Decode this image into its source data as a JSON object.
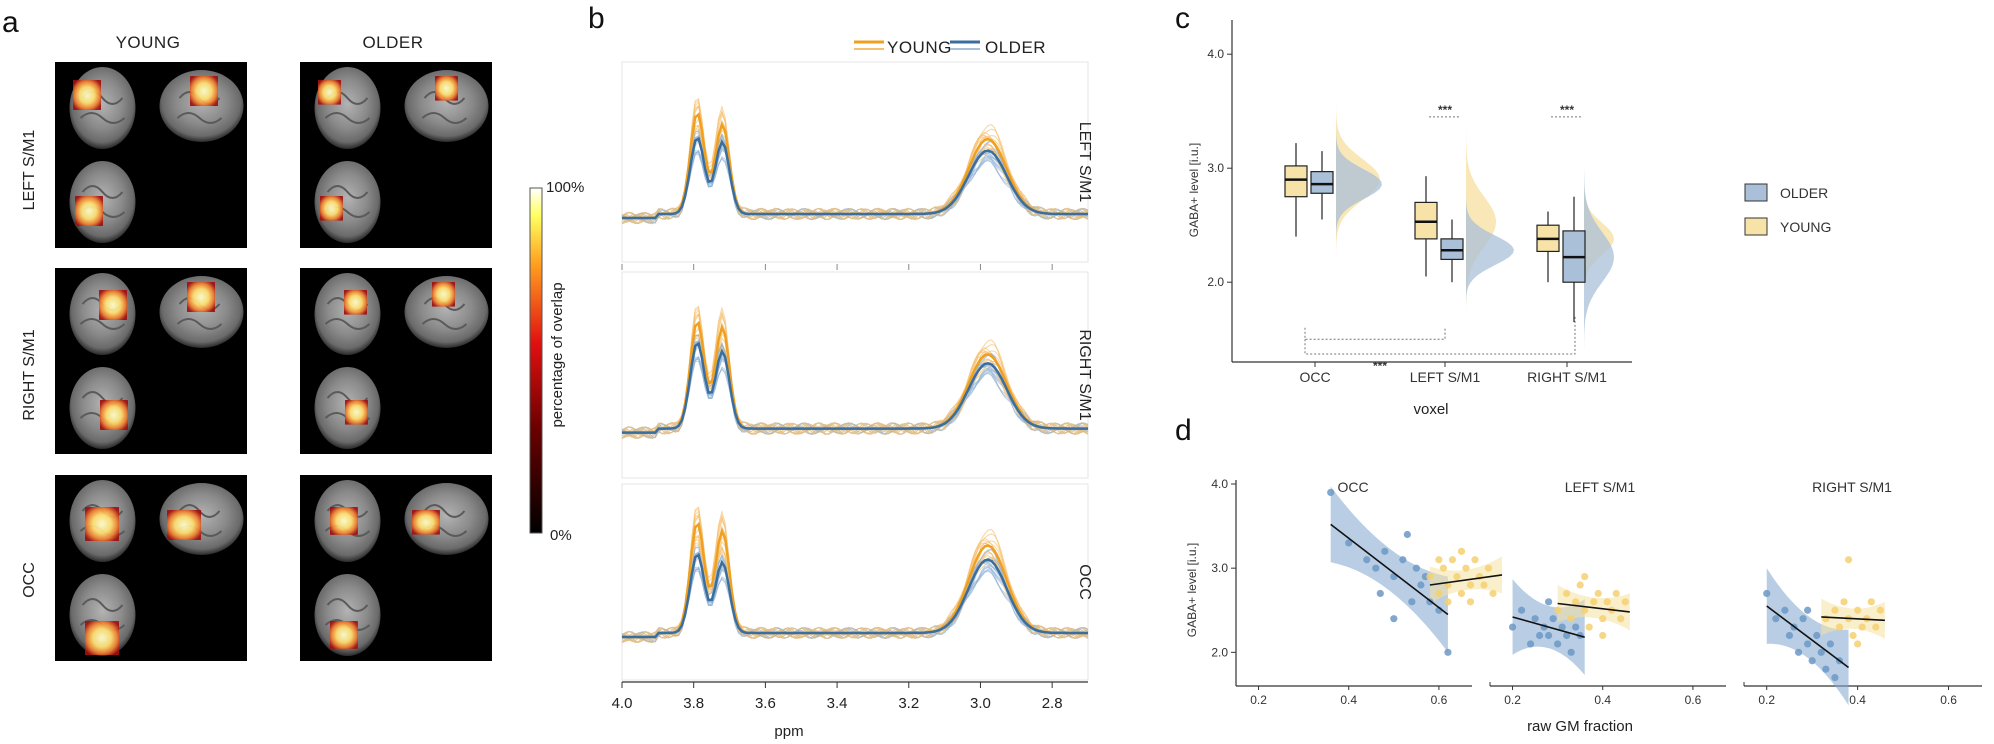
{
  "panels": {
    "a": {
      "label": "a",
      "col_headers": [
        "YOUNG",
        "OLDER"
      ],
      "row_labels": [
        "LEFT S/M1",
        "RIGHT S/M1",
        "OCC"
      ],
      "colorbar": {
        "max_label": "100%",
        "min_label": "0%",
        "title": "percentage of overlap"
      }
    },
    "b": {
      "label": "b"
    },
    "c": {
      "label": "c"
    },
    "d": {
      "label": "d"
    }
  },
  "chart_data": [
    {
      "id": "spectra",
      "type": "line",
      "panel": "b",
      "legend": [
        "YOUNG",
        "OLDER"
      ],
      "xlabel": "ppm",
      "xlim": [
        4.0,
        2.7
      ],
      "x_ticks": [
        "4.0",
        "3.8",
        "3.6",
        "3.4",
        "3.2",
        "3.0",
        "2.8"
      ],
      "x_tick_values": [
        4.0,
        3.8,
        3.6,
        3.4,
        3.2,
        3.0,
        2.8
      ],
      "ylim": [
        0,
        1
      ],
      "rows": [
        {
          "label": "LEFT S/M1",
          "young_peaks": [
            0.7,
            0.62,
            0.52
          ],
          "older_peaks": [
            0.53,
            0.5,
            0.44
          ]
        },
        {
          "label": "RIGHT S/M1",
          "young_peaks": [
            0.72,
            0.68,
            0.5
          ],
          "older_peaks": [
            0.58,
            0.52,
            0.44
          ]
        },
        {
          "label": "OCC",
          "young_peaks": [
            0.78,
            0.72,
            0.62
          ],
          "older_peaks": [
            0.56,
            0.5,
            0.52
          ]
        }
      ]
    },
    {
      "id": "gaba_box",
      "type": "box",
      "panel": "c",
      "ylabel": "GABA+ level [i.u.]",
      "xlabel": "voxel",
      "ylim": [
        1.3,
        4.3
      ],
      "y_ticks": [
        "2.0",
        "3.0",
        "4.0"
      ],
      "y_tick_values": [
        2.0,
        3.0,
        4.0
      ],
      "categories": [
        "OCC",
        "LEFT S/M1",
        "RIGHT S/M1"
      ],
      "legend": [
        "OLDER",
        "YOUNG"
      ],
      "series": [
        {
          "name": "YOUNG",
          "boxes": [
            {
              "q1": 2.75,
              "median": 2.9,
              "q3": 3.02,
              "min": 2.4,
              "max": 3.22
            },
            {
              "q1": 2.38,
              "median": 2.53,
              "q3": 2.7,
              "min": 2.05,
              "max": 2.93
            },
            {
              "q1": 2.27,
              "median": 2.38,
              "q3": 2.5,
              "min": 2.0,
              "max": 2.62
            }
          ]
        },
        {
          "name": "OLDER",
          "boxes": [
            {
              "q1": 2.78,
              "median": 2.86,
              "q3": 2.97,
              "min": 2.55,
              "max": 3.15
            },
            {
              "q1": 2.2,
              "median": 2.28,
              "q3": 2.38,
              "min": 2.0,
              "max": 2.55
            },
            {
              "q1": 2.0,
              "median": 2.22,
              "q3": 2.45,
              "min": 1.65,
              "max": 2.75
            }
          ]
        }
      ],
      "significance": [
        {
          "label": "***",
          "between": "YOUNG vs OLDER",
          "category": "LEFT S/M1"
        },
        {
          "label": "***",
          "between": "YOUNG vs OLDER",
          "category": "RIGHT S/M1"
        },
        {
          "label": "***",
          "between": "OCC vs S/M1",
          "category": "across voxels"
        }
      ]
    },
    {
      "id": "gaba_gm",
      "type": "scatter",
      "panel": "d",
      "ylabel": "GABA+ level [i.u.]",
      "xlabel": "raw GM fraction",
      "xlim": [
        0.15,
        0.7
      ],
      "ylim": [
        1.6,
        4.0
      ],
      "x_ticks": [
        "0.2",
        "0.4",
        "0.6"
      ],
      "x_tick_values": [
        0.2,
        0.4,
        0.6
      ],
      "y_ticks": [
        "2.0",
        "3.0",
        "4.0"
      ],
      "y_tick_values": [
        2.0,
        3.0,
        4.0
      ],
      "facets": [
        {
          "title": "OCC",
          "older_fit": [
            [
              0.36,
              3.52
            ],
            [
              0.62,
              2.45
            ]
          ],
          "young_fit": [
            [
              0.58,
              2.8
            ],
            [
              0.74,
              2.92
            ]
          ],
          "older_points": [
            [
              0.36,
              3.9
            ],
            [
              0.4,
              3.3
            ],
            [
              0.44,
              3.1
            ],
            [
              0.46,
              3.0
            ],
            [
              0.48,
              3.2
            ],
            [
              0.5,
              2.9
            ],
            [
              0.52,
              3.1
            ],
            [
              0.54,
              2.6
            ],
            [
              0.55,
              3.0
            ],
            [
              0.56,
              2.8
            ],
            [
              0.57,
              2.9
            ],
            [
              0.5,
              2.4
            ],
            [
              0.58,
              2.6
            ],
            [
              0.6,
              2.5
            ],
            [
              0.62,
              2.0
            ],
            [
              0.53,
              3.4
            ],
            [
              0.47,
              2.7
            ]
          ],
          "young_points": [
            [
              0.58,
              2.9
            ],
            [
              0.6,
              2.7
            ],
            [
              0.61,
              3.0
            ],
            [
              0.62,
              2.8
            ],
            [
              0.63,
              3.1
            ],
            [
              0.64,
              2.9
            ],
            [
              0.65,
              2.7
            ],
            [
              0.66,
              3.0
            ],
            [
              0.67,
              2.8
            ],
            [
              0.68,
              3.1
            ],
            [
              0.69,
              2.9
            ],
            [
              0.7,
              2.8
            ],
            [
              0.62,
              2.6
            ],
            [
              0.65,
              3.2
            ],
            [
              0.71,
              3.0
            ],
            [
              0.72,
              2.7
            ],
            [
              0.6,
              3.1
            ],
            [
              0.67,
              2.6
            ]
          ]
        },
        {
          "title": "LEFT S/M1",
          "older_fit": [
            [
              0.2,
              2.42
            ],
            [
              0.36,
              2.18
            ]
          ],
          "young_fit": [
            [
              0.3,
              2.58
            ],
            [
              0.46,
              2.48
            ]
          ],
          "older_points": [
            [
              0.2,
              2.3
            ],
            [
              0.22,
              2.5
            ],
            [
              0.24,
              2.1
            ],
            [
              0.25,
              2.4
            ],
            [
              0.26,
              2.2
            ],
            [
              0.27,
              2.3
            ],
            [
              0.28,
              2.2
            ],
            [
              0.29,
              2.4
            ],
            [
              0.3,
              2.1
            ],
            [
              0.31,
              2.3
            ],
            [
              0.32,
              2.2
            ],
            [
              0.33,
              2.0
            ],
            [
              0.34,
              2.3
            ],
            [
              0.35,
              2.2
            ],
            [
              0.28,
              2.6
            ]
          ],
          "young_points": [
            [
              0.3,
              2.5
            ],
            [
              0.32,
              2.7
            ],
            [
              0.33,
              2.4
            ],
            [
              0.34,
              2.6
            ],
            [
              0.35,
              2.8
            ],
            [
              0.36,
              2.5
            ],
            [
              0.37,
              2.3
            ],
            [
              0.38,
              2.6
            ],
            [
              0.39,
              2.7
            ],
            [
              0.4,
              2.4
            ],
            [
              0.41,
              2.6
            ],
            [
              0.42,
              2.5
            ],
            [
              0.43,
              2.7
            ],
            [
              0.44,
              2.4
            ],
            [
              0.45,
              2.6
            ],
            [
              0.36,
              2.9
            ],
            [
              0.4,
              2.2
            ]
          ]
        },
        {
          "title": "RIGHT S/M1",
          "older_fit": [
            [
              0.2,
              2.55
            ],
            [
              0.38,
              1.82
            ]
          ],
          "young_fit": [
            [
              0.32,
              2.42
            ],
            [
              0.46,
              2.38
            ]
          ],
          "older_points": [
            [
              0.2,
              2.7
            ],
            [
              0.22,
              2.4
            ],
            [
              0.24,
              2.5
            ],
            [
              0.25,
              2.2
            ],
            [
              0.26,
              2.3
            ],
            [
              0.27,
              2.0
            ],
            [
              0.28,
              2.4
            ],
            [
              0.29,
              2.1
            ],
            [
              0.3,
              1.9
            ],
            [
              0.31,
              2.2
            ],
            [
              0.32,
              2.0
            ],
            [
              0.33,
              1.8
            ],
            [
              0.34,
              2.1
            ],
            [
              0.35,
              1.7
            ],
            [
              0.36,
              1.9
            ],
            [
              0.29,
              2.5
            ]
          ],
          "young_points": [
            [
              0.33,
              2.4
            ],
            [
              0.35,
              2.5
            ],
            [
              0.36,
              2.3
            ],
            [
              0.37,
              2.6
            ],
            [
              0.38,
              2.4
            ],
            [
              0.39,
              2.2
            ],
            [
              0.4,
              2.5
            ],
            [
              0.41,
              2.3
            ],
            [
              0.42,
              2.4
            ],
            [
              0.43,
              2.6
            ],
            [
              0.44,
              2.3
            ],
            [
              0.45,
              2.5
            ],
            [
              0.38,
              3.1
            ],
            [
              0.4,
              2.1
            ]
          ]
        }
      ]
    }
  ],
  "colors": {
    "young": "#f0a020",
    "young_fill": "#f7dfa0",
    "older": "#3a6e9e",
    "older_fill": "#a9c0d8",
    "older_line": "#8fb3d6"
  }
}
